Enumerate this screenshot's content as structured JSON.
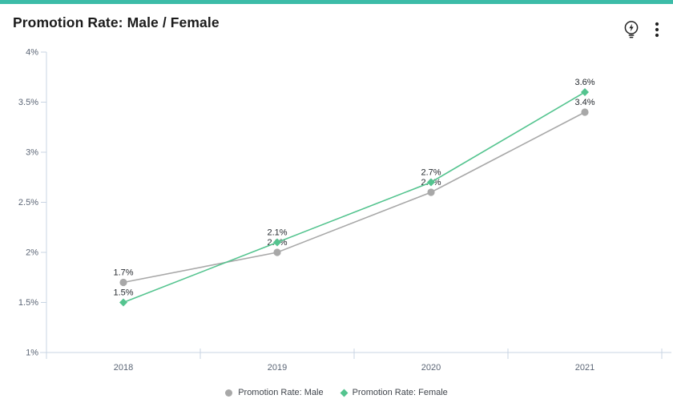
{
  "widget": {
    "title": "Promotion Rate: Male / Female",
    "accent_color": "#3cbca8",
    "icon_color": "#222222",
    "icons": {
      "insights": "lightbulb-bolt",
      "menu": "kebab-menu"
    }
  },
  "chart_data": {
    "type": "line",
    "title": "Promotion Rate: Male / Female",
    "categories": [
      "2018",
      "2019",
      "2020",
      "2021"
    ],
    "series": [
      {
        "name": "Promotion Rate: Male",
        "color": "#a8a8a8",
        "marker": "circle",
        "values": [
          1.7,
          2.0,
          2.6,
          3.4
        ],
        "labels": [
          "1.7%",
          "2.0%",
          "2.6%",
          "3.4%"
        ]
      },
      {
        "name": "Promotion Rate: Female",
        "color": "#54c48f",
        "marker": "diamond",
        "values": [
          1.5,
          2.1,
          2.7,
          3.6
        ],
        "labels": [
          "1.5%",
          "2.1%",
          "2.7%",
          "3.6%"
        ]
      }
    ],
    "xlabel": "",
    "ylabel": "",
    "ylim": [
      1,
      4
    ],
    "yticks": [
      4,
      3.5,
      3,
      2.5,
      2,
      1.5,
      1
    ],
    "ytick_suffix": "%",
    "grid": false,
    "legend_position": "bottom",
    "axis_color": "#c8d4e3",
    "axis_text_color": "#5b6575",
    "data_label_color": "#24292e"
  }
}
